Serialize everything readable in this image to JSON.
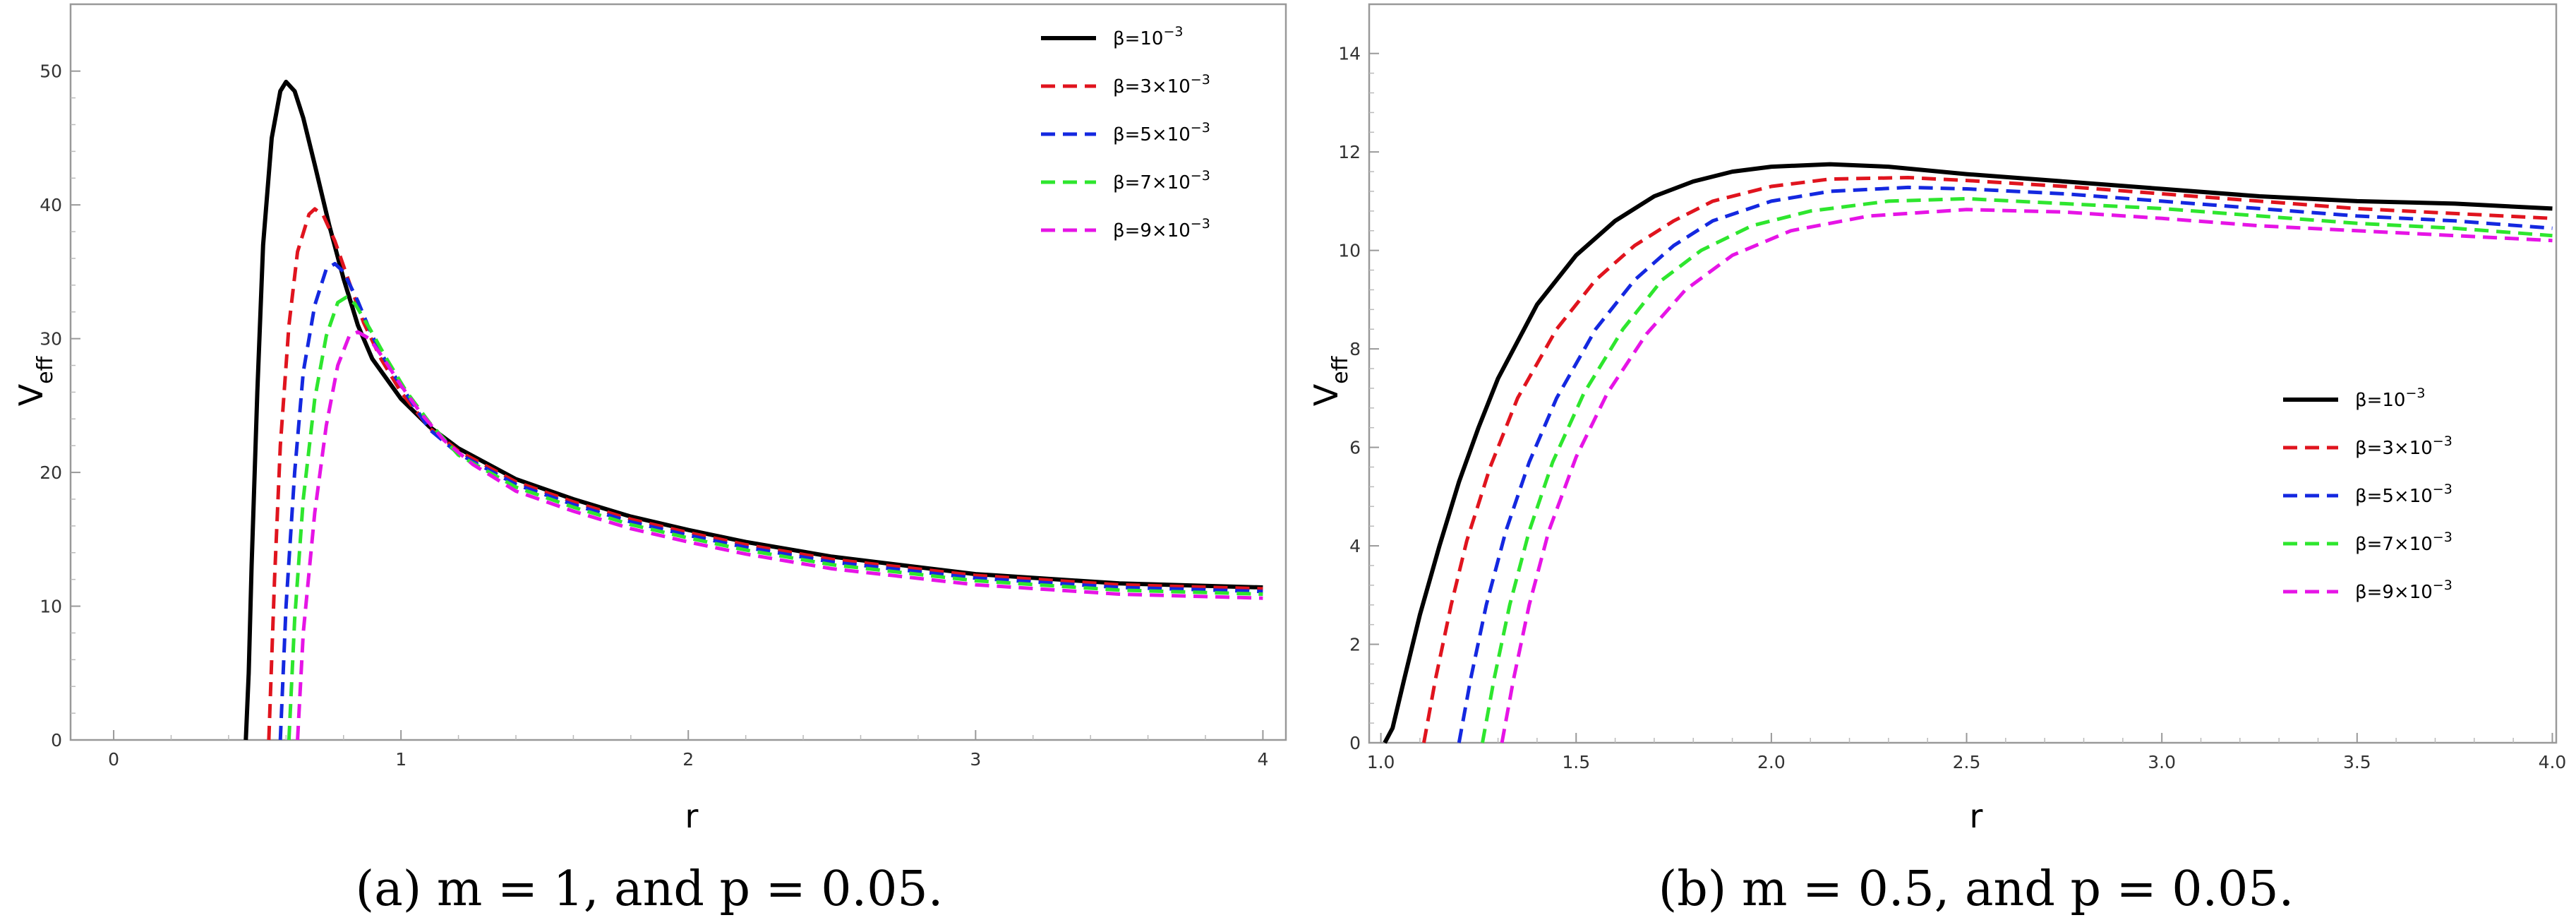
{
  "chart_data": [
    {
      "type": "line",
      "caption": "(a) m = 1, and p = 0.05.",
      "xlabel": "r",
      "ylabel": "V",
      "ylabel_sub": "eff",
      "xlim": [
        -0.15,
        4.08
      ],
      "ylim": [
        0,
        55
      ],
      "xticks": [
        0,
        1,
        2,
        3,
        4
      ],
      "yticks": [
        0,
        10,
        20,
        30,
        40,
        50
      ],
      "legend_position": "top-right",
      "series": [
        {
          "name": "β=10",
          "exp": "−3",
          "color": "#000000",
          "dash": "solid",
          "points": [
            [
              0.46,
              0
            ],
            [
              0.47,
              5
            ],
            [
              0.48,
              13
            ],
            [
              0.5,
              26
            ],
            [
              0.52,
              37
            ],
            [
              0.55,
              45
            ],
            [
              0.58,
              48.5
            ],
            [
              0.6,
              49.2
            ],
            [
              0.63,
              48.5
            ],
            [
              0.66,
              46.5
            ],
            [
              0.7,
              43
            ],
            [
              0.75,
              38.5
            ],
            [
              0.8,
              34.5
            ],
            [
              0.85,
              31
            ],
            [
              0.9,
              28.5
            ],
            [
              1.0,
              25.5
            ],
            [
              1.1,
              23.4
            ],
            [
              1.2,
              21.8
            ],
            [
              1.4,
              19.5
            ],
            [
              1.6,
              18.0
            ],
            [
              1.8,
              16.7
            ],
            [
              2.0,
              15.7
            ],
            [
              2.2,
              14.8
            ],
            [
              2.5,
              13.7
            ],
            [
              3.0,
              12.4
            ],
            [
              3.5,
              11.7
            ],
            [
              4.0,
              11.4
            ]
          ]
        },
        {
          "name": "β=3×10",
          "exp": "−3",
          "color": "#e0141e",
          "dash": "dashed",
          "points": [
            [
              0.54,
              0
            ],
            [
              0.56,
              12
            ],
            [
              0.58,
              22
            ],
            [
              0.61,
              31
            ],
            [
              0.64,
              36.5
            ],
            [
              0.68,
              39.3
            ],
            [
              0.7,
              39.7
            ],
            [
              0.73,
              39.2
            ],
            [
              0.77,
              37.3
            ],
            [
              0.82,
              34.2
            ],
            [
              0.87,
              31.2
            ],
            [
              0.93,
              28.5
            ],
            [
              1.0,
              26.0
            ],
            [
              1.1,
              23.3
            ],
            [
              1.2,
              21.6
            ],
            [
              1.4,
              19.3
            ],
            [
              1.6,
              17.8
            ],
            [
              1.8,
              16.5
            ],
            [
              2.0,
              15.5
            ],
            [
              2.2,
              14.6
            ],
            [
              2.5,
              13.5
            ],
            [
              3.0,
              12.3
            ],
            [
              3.5,
              11.6
            ],
            [
              4.0,
              11.3
            ]
          ]
        },
        {
          "name": "β=5×10",
          "exp": "−3",
          "color": "#1428e0",
          "dash": "dashed",
          "points": [
            [
              0.58,
              0
            ],
            [
              0.6,
              10
            ],
            [
              0.63,
              20
            ],
            [
              0.66,
              27.5
            ],
            [
              0.7,
              32.5
            ],
            [
              0.74,
              35.2
            ],
            [
              0.77,
              35.6
            ],
            [
              0.8,
              35.0
            ],
            [
              0.85,
              32.8
            ],
            [
              0.9,
              30.2
            ],
            [
              0.96,
              27.8
            ],
            [
              1.03,
              25.5
            ],
            [
              1.1,
              23.2
            ],
            [
              1.2,
              21.4
            ],
            [
              1.4,
              19.1
            ],
            [
              1.6,
              17.6
            ],
            [
              1.8,
              16.3
            ],
            [
              2.0,
              15.3
            ],
            [
              2.2,
              14.4
            ],
            [
              2.5,
              13.3
            ],
            [
              3.0,
              12.1
            ],
            [
              3.5,
              11.4
            ],
            [
              4.0,
              11.1
            ]
          ]
        },
        {
          "name": "β=7×10",
          "exp": "−3",
          "color": "#2ee62e",
          "dash": "dashed",
          "points": [
            [
              0.61,
              0
            ],
            [
              0.63,
              9
            ],
            [
              0.66,
              18
            ],
            [
              0.7,
              25.5
            ],
            [
              0.74,
              30.2
            ],
            [
              0.78,
              32.7
            ],
            [
              0.81,
              33.1
            ],
            [
              0.84,
              32.6
            ],
            [
              0.89,
              30.8
            ],
            [
              0.95,
              28.5
            ],
            [
              1.02,
              26.0
            ],
            [
              1.1,
              23.7
            ],
            [
              1.2,
              21.3
            ],
            [
              1.4,
              18.9
            ],
            [
              1.6,
              17.4
            ],
            [
              1.8,
              16.1
            ],
            [
              2.0,
              15.1
            ],
            [
              2.2,
              14.2
            ],
            [
              2.5,
              13.1
            ],
            [
              3.0,
              11.9
            ],
            [
              3.5,
              11.2
            ],
            [
              4.0,
              10.9
            ]
          ]
        },
        {
          "name": "β=9×10",
          "exp": "−3",
          "color": "#e614e6",
          "dash": "dashed",
          "points": [
            [
              0.64,
              0
            ],
            [
              0.66,
              8
            ],
            [
              0.7,
              17
            ],
            [
              0.74,
              23.5
            ],
            [
              0.78,
              28
            ],
            [
              0.82,
              30.2
            ],
            [
              0.85,
              30.5
            ],
            [
              0.89,
              30.0
            ],
            [
              0.94,
              28.5
            ],
            [
              1.0,
              26.5
            ],
            [
              1.07,
              24.4
            ],
            [
              1.15,
              22.4
            ],
            [
              1.25,
              20.6
            ],
            [
              1.4,
              18.6
            ],
            [
              1.6,
              17.1
            ],
            [
              1.8,
              15.8
            ],
            [
              2.0,
              14.8
            ],
            [
              2.2,
              13.9
            ],
            [
              2.5,
              12.8
            ],
            [
              3.0,
              11.6
            ],
            [
              3.5,
              10.9
            ],
            [
              4.0,
              10.6
            ]
          ]
        }
      ]
    },
    {
      "type": "line",
      "caption": "(b) m = 0.5, and p = 0.05.",
      "xlabel": "r",
      "ylabel": "V",
      "ylabel_sub": "eff",
      "xlim": [
        0.97,
        4.01
      ],
      "ylim": [
        0,
        15
      ],
      "xticks": [
        1.0,
        1.5,
        2.0,
        2.5,
        3.0,
        3.5,
        4.0
      ],
      "yticks": [
        0,
        2,
        4,
        6,
        8,
        10,
        12,
        14
      ],
      "legend_position": "center-right",
      "series": [
        {
          "name": "β=10",
          "exp": "−3",
          "color": "#000000",
          "dash": "solid",
          "points": [
            [
              1.01,
              0
            ],
            [
              1.03,
              0.3
            ],
            [
              1.06,
              1.3
            ],
            [
              1.1,
              2.6
            ],
            [
              1.15,
              4.0
            ],
            [
              1.2,
              5.3
            ],
            [
              1.25,
              6.4
            ],
            [
              1.3,
              7.4
            ],
            [
              1.4,
              8.9
            ],
            [
              1.5,
              9.9
            ],
            [
              1.6,
              10.6
            ],
            [
              1.7,
              11.1
            ],
            [
              1.8,
              11.4
            ],
            [
              1.9,
              11.6
            ],
            [
              2.0,
              11.7
            ],
            [
              2.15,
              11.75
            ],
            [
              2.3,
              11.7
            ],
            [
              2.5,
              11.55
            ],
            [
              2.75,
              11.4
            ],
            [
              3.0,
              11.25
            ],
            [
              3.25,
              11.1
            ],
            [
              3.5,
              11.0
            ],
            [
              3.75,
              10.95
            ],
            [
              4.0,
              10.85
            ]
          ]
        },
        {
          "name": "β=3×10",
          "exp": "−3",
          "color": "#e0141e",
          "dash": "dashed",
          "points": [
            [
              1.11,
              0
            ],
            [
              1.14,
              1.3
            ],
            [
              1.18,
              2.8
            ],
            [
              1.22,
              4.1
            ],
            [
              1.28,
              5.6
            ],
            [
              1.35,
              7.0
            ],
            [
              1.45,
              8.4
            ],
            [
              1.55,
              9.4
            ],
            [
              1.65,
              10.1
            ],
            [
              1.75,
              10.6
            ],
            [
              1.85,
              11.0
            ],
            [
              2.0,
              11.3
            ],
            [
              2.15,
              11.45
            ],
            [
              2.35,
              11.48
            ],
            [
              2.5,
              11.42
            ],
            [
              2.75,
              11.3
            ],
            [
              3.0,
              11.15
            ],
            [
              3.25,
              11.0
            ],
            [
              3.5,
              10.85
            ],
            [
              3.75,
              10.75
            ],
            [
              4.0,
              10.65
            ]
          ]
        },
        {
          "name": "β=5×10",
          "exp": "−3",
          "color": "#1428e0",
          "dash": "dashed",
          "points": [
            [
              1.2,
              0
            ],
            [
              1.23,
              1.3
            ],
            [
              1.27,
              2.8
            ],
            [
              1.32,
              4.3
            ],
            [
              1.38,
              5.7
            ],
            [
              1.45,
              7.0
            ],
            [
              1.55,
              8.4
            ],
            [
              1.65,
              9.4
            ],
            [
              1.75,
              10.1
            ],
            [
              1.85,
              10.6
            ],
            [
              2.0,
              11.0
            ],
            [
              2.15,
              11.2
            ],
            [
              2.35,
              11.28
            ],
            [
              2.5,
              11.25
            ],
            [
              2.75,
              11.15
            ],
            [
              3.0,
              11.0
            ],
            [
              3.25,
              10.85
            ],
            [
              3.5,
              10.7
            ],
            [
              3.75,
              10.6
            ],
            [
              4.0,
              10.45
            ]
          ]
        },
        {
          "name": "β=7×10",
          "exp": "−3",
          "color": "#2ee62e",
          "dash": "dashed",
          "points": [
            [
              1.26,
              0
            ],
            [
              1.29,
              1.3
            ],
            [
              1.33,
              2.8
            ],
            [
              1.38,
              4.3
            ],
            [
              1.44,
              5.7
            ],
            [
              1.52,
              7.1
            ],
            [
              1.62,
              8.4
            ],
            [
              1.72,
              9.4
            ],
            [
              1.82,
              10.0
            ],
            [
              1.95,
              10.5
            ],
            [
              2.1,
              10.8
            ],
            [
              2.3,
              11.0
            ],
            [
              2.5,
              11.05
            ],
            [
              2.75,
              10.95
            ],
            [
              3.0,
              10.85
            ],
            [
              3.25,
              10.7
            ],
            [
              3.5,
              10.55
            ],
            [
              3.75,
              10.45
            ],
            [
              4.0,
              10.3
            ]
          ]
        },
        {
          "name": "β=9×10",
          "exp": "−3",
          "color": "#e614e6",
          "dash": "dashed",
          "points": [
            [
              1.31,
              0
            ],
            [
              1.34,
              1.3
            ],
            [
              1.38,
              2.8
            ],
            [
              1.43,
              4.3
            ],
            [
              1.5,
              5.8
            ],
            [
              1.58,
              7.1
            ],
            [
              1.68,
              8.3
            ],
            [
              1.78,
              9.2
            ],
            [
              1.9,
              9.9
            ],
            [
              2.05,
              10.4
            ],
            [
              2.25,
              10.7
            ],
            [
              2.5,
              10.83
            ],
            [
              2.75,
              10.78
            ],
            [
              3.0,
              10.65
            ],
            [
              3.25,
              10.5
            ],
            [
              3.5,
              10.4
            ],
            [
              3.75,
              10.3
            ],
            [
              4.0,
              10.2
            ]
          ]
        }
      ]
    }
  ]
}
